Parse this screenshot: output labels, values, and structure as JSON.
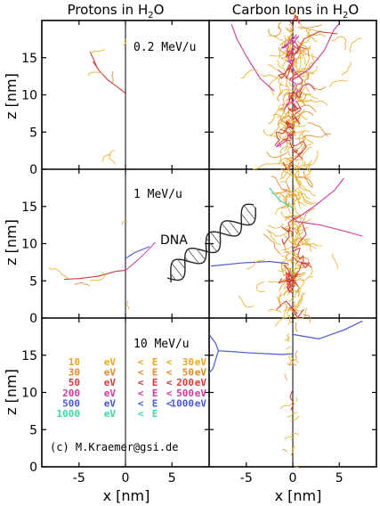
{
  "chart_data": {
    "type": "line",
    "titles": {
      "left": "Protons in H",
      "left_sub": "2",
      "left_tail": "O",
      "right": "Carbon Ions in H",
      "right_sub": "2",
      "right_tail": "O"
    },
    "xlabel": "x  [nm]",
    "ylabel": "z  [nm]",
    "xlim": [
      -9,
      9
    ],
    "ylim": [
      0,
      20
    ],
    "x_ticks": [
      -5,
      0,
      5
    ],
    "y_ticks": [
      0,
      5,
      10,
      15
    ],
    "y_tick_labels": [
      "0",
      "5",
      "10",
      "15"
    ],
    "x_tick_labels": [
      "-5",
      "0",
      "5"
    ],
    "rows": [
      {
        "energy": "0.2 MeV/u"
      },
      {
        "energy": "1 MeV/u"
      },
      {
        "energy": "10 MeV/u"
      }
    ],
    "dna_label": "DNA",
    "credit": "(c) M.Kraemer@gsi.de",
    "legend": [
      {
        "lo": "10",
        "lo_unit": "eV",
        "lt": "<",
        "E": "E",
        "lt2": "<",
        "hi": "30",
        "hi_unit": "eV",
        "color": "#e8a81e"
      },
      {
        "lo": "30",
        "lo_unit": "eV",
        "lt": "<",
        "E": "E",
        "lt2": "<",
        "hi": "50",
        "hi_unit": "eV",
        "color": "#e08a28"
      },
      {
        "lo": "50",
        "lo_unit": "eV",
        "lt": "<",
        "E": "E",
        "lt2": "<",
        "hi": "200",
        "hi_unit": "eV",
        "color": "#d23c3c"
      },
      {
        "lo": "200",
        "lo_unit": "eV",
        "lt": "<",
        "E": "E",
        "lt2": "<",
        "hi": "500",
        "hi_unit": "eV",
        "color": "#cc3c9c"
      },
      {
        "lo": "500",
        "lo_unit": "eV",
        "lt": "<",
        "E": "E",
        "lt2": "<",
        "hi": "1000",
        "hi_unit": "eV",
        "color": "#4a5ad6"
      },
      {
        "lo": "1000",
        "lo_unit": "eV",
        "lt": "<",
        "E": "E",
        "lt2": "",
        "hi": "",
        "hi_unit": "",
        "color": "#3ad6a8"
      }
    ],
    "colors": {
      "c10": "#e8b43a",
      "c30": "#e09030",
      "c50": "#d23c3c",
      "c200": "#cc3c9c",
      "c500": "#4a5ad6",
      "c1000": "#3ad6a8",
      "primary": "#000000"
    }
  }
}
